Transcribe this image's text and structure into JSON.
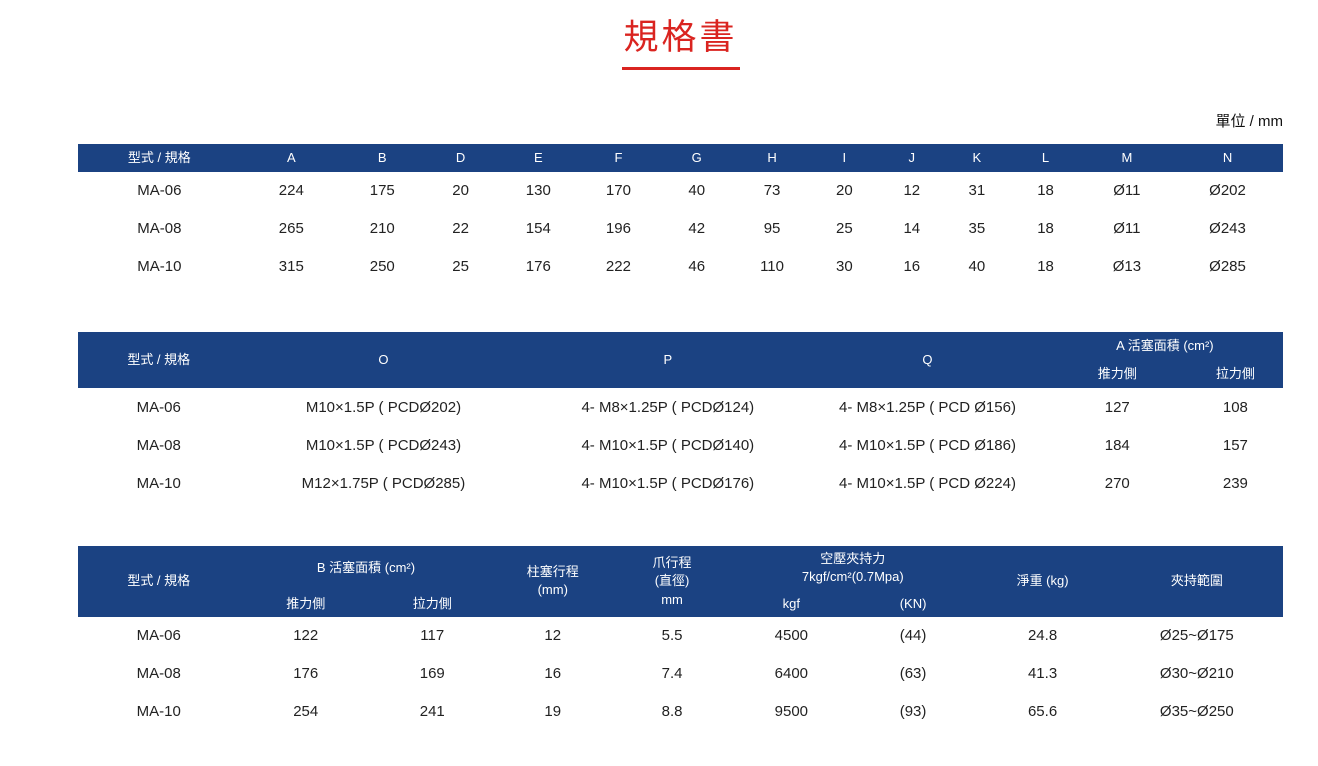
{
  "page": {
    "title": "規格書",
    "unit_label": "單位 / mm"
  },
  "colors": {
    "header_blue": "#1b4282",
    "title_red": "#da2420"
  },
  "tables": [
    {
      "header": [
        [
          {
            "label": "型式 / 規格"
          },
          {
            "label": "A"
          },
          {
            "label": "B"
          },
          {
            "label": "D"
          },
          {
            "label": "E"
          },
          {
            "label": "F"
          },
          {
            "label": "G"
          },
          {
            "label": "H"
          },
          {
            "label": "I"
          },
          {
            "label": "J"
          },
          {
            "label": "K"
          },
          {
            "label": "L"
          },
          {
            "label": "M"
          },
          {
            "label": "N"
          }
        ]
      ],
      "rows": [
        [
          "MA-06",
          "224",
          "175",
          "20",
          "130",
          "170",
          "40",
          "73",
          "20",
          "12",
          "31",
          "18",
          "Ø11",
          "Ø202"
        ],
        [
          "MA-08",
          "265",
          "210",
          "22",
          "154",
          "196",
          "42",
          "95",
          "25",
          "14",
          "35",
          "18",
          "Ø11",
          "Ø243"
        ],
        [
          "MA-10",
          "315",
          "250",
          "25",
          "176",
          "222",
          "46",
          "110",
          "30",
          "16",
          "40",
          "18",
          "Ø13",
          "Ø285"
        ]
      ]
    },
    {
      "header": [
        [
          {
            "label": "型式 / 規格",
            "rowspan": 2
          },
          {
            "label": "O",
            "rowspan": 2
          },
          {
            "label": "P",
            "rowspan": 2
          },
          {
            "label": "Q",
            "rowspan": 2
          },
          {
            "label": "A 活塞面積 (cm²)",
            "colspan": 2
          }
        ],
        [
          {
            "label": "推力側"
          },
          {
            "label": "拉力側"
          }
        ]
      ],
      "rows": [
        [
          "MA-06",
          "M10×1.5P ( PCDØ202)",
          "4- M8×1.25P ( PCDØ124)",
          "4- M8×1.25P ( PCD Ø156)",
          "127",
          "108"
        ],
        [
          "MA-08",
          "M10×1.5P ( PCDØ243)",
          "4- M10×1.5P ( PCDØ140)",
          "4- M10×1.5P ( PCD Ø186)",
          "184",
          "157"
        ],
        [
          "MA-10",
          "M12×1.75P ( PCDØ285)",
          "4- M10×1.5P ( PCDØ176)",
          "4- M10×1.5P ( PCD Ø224)",
          "270",
          "239"
        ]
      ]
    },
    {
      "header": [
        [
          {
            "label": "型式 / 規格",
            "rowspan": 2
          },
          {
            "label": "B 活塞面積 (cm²)",
            "colspan": 2
          },
          {
            "label": "柱塞行程\n(mm)",
            "rowspan": 2
          },
          {
            "label": "爪行程\n(直徑)\nmm",
            "rowspan": 2
          },
          {
            "label": "空壓夾持力\n7kgf/cm²(0.7Mpa)",
            "colspan": 2
          },
          {
            "label": "淨重 (kg)",
            "rowspan": 2
          },
          {
            "label": "夾持範圍",
            "rowspan": 2
          }
        ],
        [
          {
            "label": "推力側"
          },
          {
            "label": "拉力側"
          },
          {
            "label": "kgf"
          },
          {
            "label": "(KN)"
          }
        ]
      ],
      "rows": [
        [
          "MA-06",
          "122",
          "117",
          "12",
          "5.5",
          "4500",
          "(44)",
          "24.8",
          "Ø25~Ø175"
        ],
        [
          "MA-08",
          "176",
          "169",
          "16",
          "7.4",
          "6400",
          "(63)",
          "41.3",
          "Ø30~Ø210"
        ],
        [
          "MA-10",
          "254",
          "241",
          "19",
          "8.8",
          "9500",
          "(93)",
          "65.6",
          "Ø35~Ø250"
        ]
      ]
    }
  ]
}
